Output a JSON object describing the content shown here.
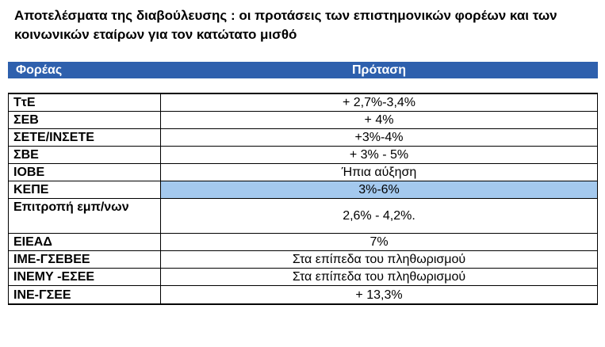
{
  "title": "Αποτελέσματα της διαβούλευσης : οι προτάσεις των επιστημονικών φορέων και των κοινωνικών εταίρων για τον κατώτατο μισθό",
  "header": {
    "col1": "Φορέας",
    "col2": "Πρόταση"
  },
  "rows": [
    {
      "body": "ΤτΕ",
      "proposal": "+ 2,7%-3,4%"
    },
    {
      "body": "ΣΕΒ",
      "proposal": "+ 4%"
    },
    {
      "body": "ΣΕΤΕ/ΙΝΣΕΤΕ",
      "proposal": "+3%-4%"
    },
    {
      "body": "ΣΒΕ",
      "proposal": "+ 3% - 5%"
    },
    {
      "body": "ΙΟΒΕ",
      "proposal": "Ήπια αύξηση"
    },
    {
      "body": "ΚΕΠΕ",
      "proposal": "3%-6%"
    },
    {
      "body": "Επιτροπή εμπ/νων",
      "proposal": "2,6% - 4,2%."
    },
    {
      "body": "ΕΙΕΑΔ",
      "proposal": "7%"
    },
    {
      "body": "ΙΜΕ-ΓΣΕΒΕΕ",
      "proposal": "Στα επίπεδα του πληθωρισμού"
    },
    {
      "body": "ΙΝΕΜΥ -ΕΣΕΕ",
      "proposal": "Στα επίπεδα του πληθωρισμού"
    },
    {
      "body": "ΙΝΕ-ΓΣΕΕ",
      "proposal": "+ 13,3%"
    }
  ],
  "colors": {
    "header_bg": "#2e60ad",
    "highlight_bg": "#a4c9ee"
  }
}
